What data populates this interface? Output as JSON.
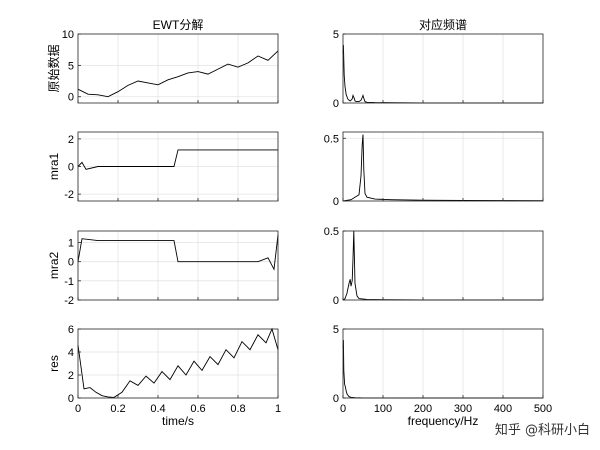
{
  "chart_data": [
    {
      "type": "line",
      "title": "EWT分解",
      "xlabel": "",
      "ylabel": "原始数据",
      "xlim": [
        0,
        1
      ],
      "ylim": [
        -1,
        10
      ],
      "xticks": [
        0,
        0.2,
        0.4,
        0.6,
        0.8,
        1
      ],
      "xticklabels": [],
      "yticks": [
        0,
        5,
        10
      ],
      "yticklabels": [
        "0",
        "5",
        "10"
      ],
      "grid": true,
      "series": [
        {
          "x": [
            0,
            0.05,
            0.1,
            0.15,
            0.2,
            0.25,
            0.3,
            0.35,
            0.4,
            0.45,
            0.5,
            0.55,
            0.6,
            0.65,
            0.7,
            0.75,
            0.8,
            0.85,
            0.9,
            0.95,
            1
          ],
          "y": [
            1.2,
            0.4,
            0.3,
            0.0,
            0.8,
            1.8,
            2.5,
            2.2,
            1.9,
            2.7,
            3.2,
            3.8,
            4.0,
            3.6,
            4.4,
            5.2,
            4.7,
            5.4,
            6.5,
            5.8,
            7.3
          ]
        }
      ]
    },
    {
      "type": "line",
      "title": "对应频谱",
      "xlabel": "",
      "ylabel": "",
      "xlim": [
        0,
        500
      ],
      "ylim": [
        0,
        5
      ],
      "xticks": [
        0,
        100,
        200,
        300,
        400,
        500
      ],
      "xticklabels": [],
      "yticks": [
        0,
        5
      ],
      "yticklabels": [
        "0",
        "5"
      ],
      "grid": true,
      "series": [
        {
          "x": [
            0,
            1,
            3,
            5,
            8,
            12,
            15,
            18,
            20,
            23,
            25,
            28,
            30,
            33,
            35,
            40,
            45,
            48,
            50,
            52,
            55,
            60,
            80,
            120,
            200,
            300,
            400,
            500
          ],
          "y": [
            3.6,
            4.2,
            2.0,
            1.2,
            0.6,
            0.3,
            0.2,
            0.15,
            0.2,
            0.3,
            0.55,
            0.35,
            0.15,
            0.1,
            0.1,
            0.1,
            0.2,
            0.4,
            0.55,
            0.35,
            0.1,
            0.05,
            0.03,
            0.02,
            0.01,
            0.01,
            0.01,
            0.01
          ]
        }
      ]
    },
    {
      "type": "line",
      "title": "",
      "xlabel": "",
      "ylabel": "mra1",
      "xlim": [
        0,
        1
      ],
      "ylim": [
        -2.5,
        2.5
      ],
      "xticks": [
        0,
        0.2,
        0.4,
        0.6,
        0.8,
        1
      ],
      "xticklabels": [],
      "yticks": [
        -2,
        0,
        2
      ],
      "yticklabels": [
        "-2",
        "0",
        "2"
      ],
      "grid": true,
      "series": [
        {
          "x": [
            0,
            0.02,
            0.04,
            0.1,
            0.2,
            0.3,
            0.4,
            0.48,
            0.5,
            0.6,
            0.7,
            0.8,
            0.9,
            1
          ],
          "y": [
            0,
            0.3,
            -0.2,
            0,
            0,
            0,
            0,
            0,
            1.2,
            1.2,
            1.2,
            1.2,
            1.2,
            1.2
          ]
        }
      ]
    },
    {
      "type": "line",
      "title": "",
      "xlabel": "",
      "ylabel": "",
      "xlim": [
        0,
        500
      ],
      "ylim": [
        0,
        0.55
      ],
      "xticks": [
        0,
        100,
        200,
        300,
        400,
        500
      ],
      "xticklabels": [],
      "yticks": [
        0,
        0.5
      ],
      "yticklabels": [
        "0",
        "0.5"
      ],
      "grid": true,
      "series": [
        {
          "x": [
            0,
            20,
            40,
            45,
            48,
            50,
            52,
            55,
            60,
            80,
            120,
            200,
            300,
            400,
            500
          ],
          "y": [
            0,
            0.01,
            0.05,
            0.2,
            0.45,
            0.53,
            0.25,
            0.06,
            0.03,
            0.015,
            0.01,
            0.006,
            0.004,
            0.003,
            0.002
          ]
        }
      ]
    },
    {
      "type": "line",
      "title": "",
      "xlabel": "",
      "ylabel": "mra2",
      "xlim": [
        0,
        1
      ],
      "ylim": [
        -2,
        1.6
      ],
      "xticks": [
        0,
        0.2,
        0.4,
        0.6,
        0.8,
        1
      ],
      "xticklabels": [],
      "yticks": [
        -2,
        -1,
        0,
        1
      ],
      "yticklabels": [
        "-2",
        "-1",
        "0",
        "1"
      ],
      "grid": true,
      "series": [
        {
          "x": [
            0,
            0.02,
            0.1,
            0.2,
            0.3,
            0.4,
            0.48,
            0.5,
            0.6,
            0.7,
            0.8,
            0.9,
            0.95,
            0.98,
            1
          ],
          "y": [
            0,
            1.2,
            1.1,
            1.1,
            1.1,
            1.1,
            1.1,
            0,
            0,
            0,
            0,
            0,
            0.2,
            -0.4,
            1.4
          ]
        }
      ]
    },
    {
      "type": "line",
      "title": "",
      "xlabel": "",
      "ylabel": "",
      "xlim": [
        0,
        500
      ],
      "ylim": [
        0,
        0.5
      ],
      "xticks": [
        0,
        100,
        200,
        300,
        400,
        500
      ],
      "xticklabels": [],
      "yticks": [
        0,
        0.5
      ],
      "yticklabels": [
        "0",
        "0.5"
      ],
      "grid": true,
      "series": [
        {
          "x": [
            0,
            5,
            10,
            15,
            18,
            20,
            23,
            25,
            27,
            30,
            35,
            40,
            60,
            100,
            200,
            300,
            400,
            500
          ],
          "y": [
            0,
            0.01,
            0.05,
            0.12,
            0.15,
            0.1,
            0.14,
            0.3,
            0.5,
            0.12,
            0.03,
            0.01,
            0.004,
            0.002,
            0.001,
            0.001,
            0.001,
            0.001
          ]
        }
      ]
    },
    {
      "type": "line",
      "title": "",
      "xlabel": "time/s",
      "ylabel": "res",
      "xlim": [
        0,
        1
      ],
      "ylim": [
        0,
        6
      ],
      "xticks": [
        0,
        0.2,
        0.4,
        0.6,
        0.8,
        1
      ],
      "xticklabels": [
        "0",
        "0.2",
        "0.4",
        "0.6",
        "0.8",
        "1"
      ],
      "yticks": [
        0,
        2,
        4,
        6
      ],
      "yticklabels": [
        "0",
        "2",
        "4",
        "6"
      ],
      "grid": true,
      "series": [
        {
          "x": [
            0,
            0.03,
            0.06,
            0.09,
            0.12,
            0.15,
            0.18,
            0.22,
            0.26,
            0.3,
            0.34,
            0.38,
            0.42,
            0.46,
            0.5,
            0.54,
            0.58,
            0.62,
            0.66,
            0.7,
            0.74,
            0.78,
            0.82,
            0.86,
            0.9,
            0.94,
            0.97,
            1
          ],
          "y": [
            4.6,
            0.8,
            0.9,
            0.5,
            0.2,
            0.1,
            0.05,
            0.5,
            1.5,
            1.1,
            1.9,
            1.3,
            2.3,
            1.6,
            2.8,
            2.0,
            3.2,
            2.4,
            3.6,
            2.9,
            4.2,
            3.5,
            4.9,
            4.2,
            5.5,
            4.8,
            6.0,
            4.2
          ]
        }
      ]
    },
    {
      "type": "line",
      "title": "",
      "xlabel": "frequency/Hz",
      "ylabel": "",
      "xlim": [
        0,
        500
      ],
      "ylim": [
        0,
        5
      ],
      "xticks": [
        0,
        100,
        200,
        300,
        400,
        500
      ],
      "xticklabels": [
        "0",
        "100",
        "200",
        "300",
        "400",
        "500"
      ],
      "yticks": [
        0,
        5
      ],
      "yticklabels": [
        "0",
        "5"
      ],
      "grid": true,
      "series": [
        {
          "x": [
            0,
            1,
            2,
            4,
            6,
            8,
            10,
            15,
            20,
            30,
            50,
            100,
            200,
            300,
            400,
            500
          ],
          "y": [
            3.6,
            4.2,
            2.0,
            1.0,
            0.8,
            0.5,
            0.3,
            0.1,
            0.05,
            0.02,
            0.01,
            0.005,
            0.003,
            0.002,
            0.001,
            0.001
          ]
        }
      ]
    }
  ],
  "watermark": "知乎 @科研小白"
}
